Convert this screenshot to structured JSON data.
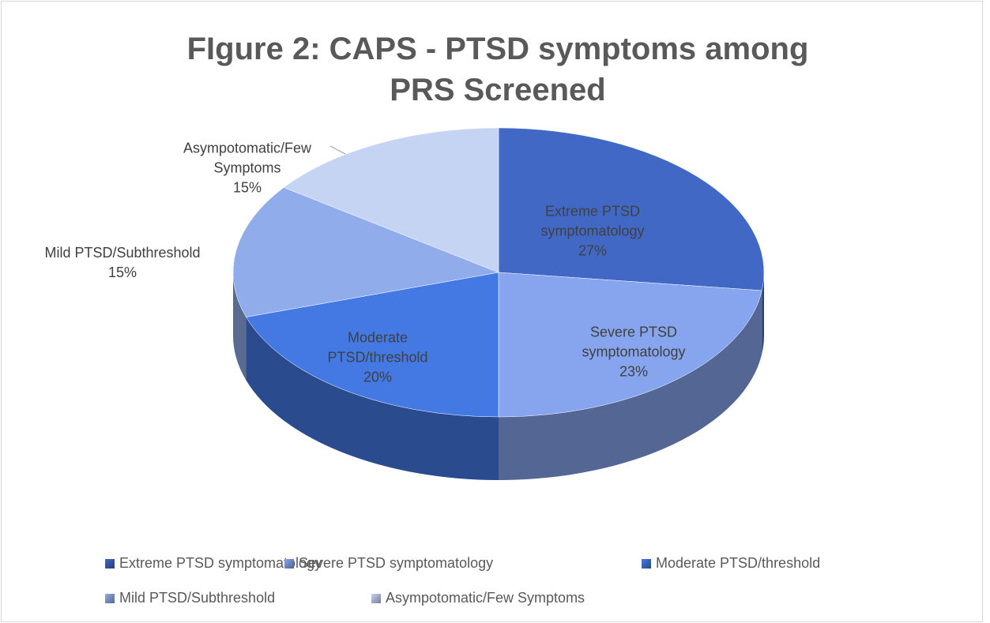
{
  "chart_data": {
    "type": "pie",
    "title": "FIgure 2: CAPS - PTSD symptoms among PRS Screened",
    "categories": [
      "Extreme PTSD symptomatology",
      "Severe PTSD symptomatology",
      "Moderate PTSD/threshold",
      "Mild PTSD/Subthreshold",
      "Asympotomatic/Few Symptoms"
    ],
    "values": [
      27,
      23,
      20,
      15,
      15
    ],
    "value_labels": [
      "27%",
      "23%",
      "20%",
      "15%",
      "15%"
    ],
    "colors": [
      "#4168c4",
      "#86a5ee",
      "#4479e4",
      "#90acea",
      "#c6d4f3"
    ],
    "legend": "bottom"
  }
}
